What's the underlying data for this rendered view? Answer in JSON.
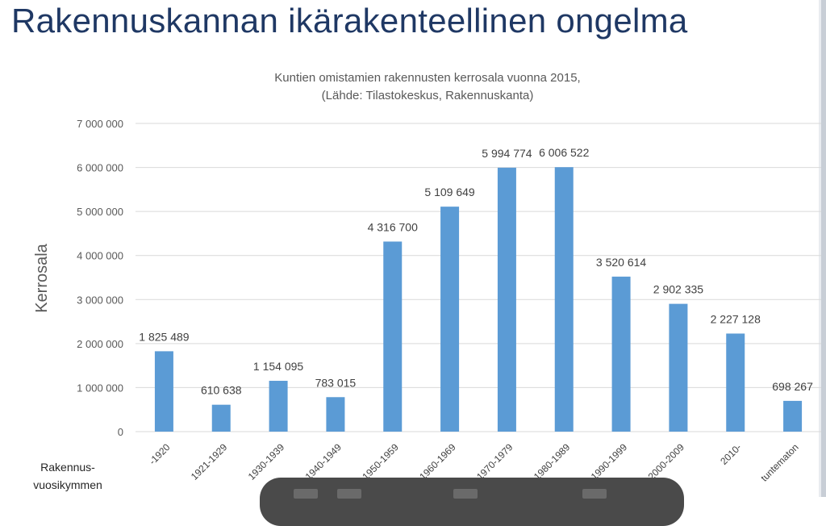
{
  "slide": {
    "title": "Rakennuskannan ikärakenteellinen ongelma"
  },
  "chart_data": {
    "type": "bar",
    "title_lines": [
      "Kuntien omistamien rakennusten kerrosala vuonna 2015,",
      "(Lähde: Tilastokeskus, Rakennuskanta)"
    ],
    "ylabel": "Kerrosala",
    "xlabel_lines": [
      "Rakennus-",
      "vuosikymmen"
    ],
    "categories": [
      "-1920",
      "1921-1929",
      "1930-1939",
      "1940-1949",
      "1950-1959",
      "1960-1969",
      "1970-1979",
      "1980-1989",
      "1990-1999",
      "2000-2009",
      "2010-",
      "tuntematon"
    ],
    "values": [
      1825489,
      610638,
      1154095,
      783015,
      4316700,
      5109649,
      5994774,
      6006522,
      3520614,
      2902335,
      2227128,
      698267
    ],
    "value_labels": [
      "1 825 489",
      "610 638",
      "1 154 095",
      "783 015",
      "4 316 700",
      "5 109 649",
      "5 994 774",
      "6 006 522",
      "3 520 614",
      "2 902 335",
      "2 227 128",
      "698 267"
    ],
    "ylim": [
      0,
      7000000
    ],
    "yticks": [
      0,
      1000000,
      2000000,
      3000000,
      4000000,
      5000000,
      6000000,
      7000000
    ],
    "ytick_labels": [
      "0",
      "1 000 000",
      "2 000 000",
      "3 000 000",
      "4 000 000",
      "5 000 000",
      "6 000 000",
      "7 000 000"
    ],
    "grid": true,
    "bar_color": "#5b9bd5",
    "grid_color": "#d9d9d9"
  }
}
